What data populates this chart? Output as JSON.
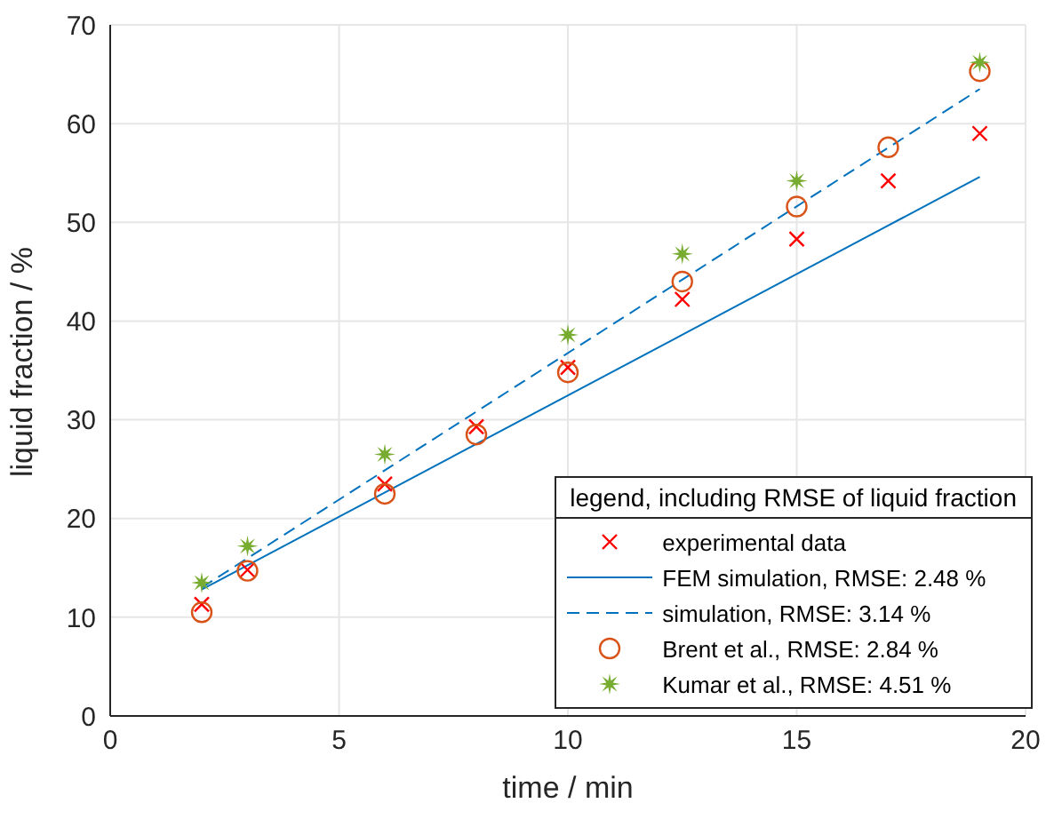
{
  "chart_data": {
    "type": "scatter",
    "xlabel": "time / min",
    "ylabel": "liquid fraction / %",
    "legend_title": "legend, including RMSE of liquid fraction",
    "xlim": [
      0,
      20
    ],
    "xticks": [
      0,
      5,
      10,
      15,
      20
    ],
    "ylim": [
      0,
      70
    ],
    "yticks": [
      0,
      10,
      20,
      30,
      40,
      50,
      60,
      70
    ],
    "grid": true,
    "legend": "bottom right",
    "series": [
      {
        "name": "experimental data",
        "marker": "cross",
        "color": "#ff0000",
        "x": [
          2,
          3,
          6,
          8,
          10,
          12.5,
          15,
          17,
          19
        ],
        "values": [
          11.3,
          14.8,
          23.5,
          29.3,
          35.3,
          42.2,
          48.3,
          54.2,
          59.0
        ]
      },
      {
        "name": "FEM simulation, RMSE: 2.48 %",
        "type": "line",
        "marker": "none",
        "line_style": "solid",
        "color": "#0072bd",
        "x": [
          2,
          19
        ],
        "values": [
          12.8,
          54.6
        ]
      },
      {
        "name": "simulation, RMSE: 3.14 %",
        "type": "line",
        "marker": "none",
        "line_style": "dashed",
        "color": "#0072bd",
        "x": [
          2,
          19
        ],
        "values": [
          13.0,
          63.5
        ]
      },
      {
        "name": "Brent et al., RMSE: 2.84 %",
        "marker": "circle",
        "color": "#d95319",
        "x": [
          2,
          3,
          6,
          8,
          10,
          12.5,
          15,
          17,
          19
        ],
        "values": [
          10.5,
          14.7,
          22.5,
          28.5,
          34.8,
          44.0,
          51.6,
          57.6,
          65.3
        ]
      },
      {
        "name": "Kumar et al., RMSE: 4.51 %",
        "marker": "star",
        "color": "#77ac30",
        "x": [
          2,
          3,
          6,
          10,
          12.5,
          15,
          19
        ],
        "values": [
          13.5,
          17.2,
          26.5,
          38.6,
          46.8,
          54.2,
          66.2
        ]
      }
    ]
  }
}
